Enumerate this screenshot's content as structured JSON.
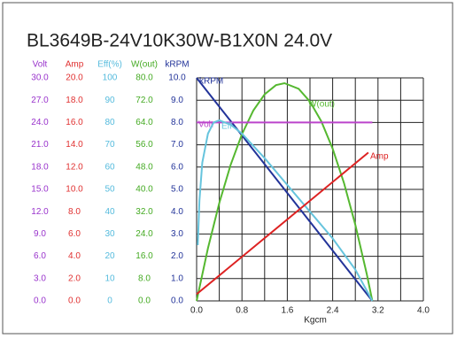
{
  "chart_data": {
    "type": "line",
    "title": "BL3649B-24V10K30W-B1X0N   24.0V",
    "x_label": "Kgcm",
    "xlim": [
      0,
      4.0
    ],
    "xticks": [
      {
        "value": 0,
        "label": "0.0"
      },
      {
        "value": 0.8,
        "label": "0.8"
      },
      {
        "value": 1.6,
        "label": "1.6"
      },
      {
        "value": 2.4,
        "label": "2.4"
      },
      {
        "value": 3.2,
        "label": "3.2"
      },
      {
        "value": 4.0,
        "label": "4.0"
      }
    ],
    "x_minor_grid": [
      0.4,
      1.2,
      2.0,
      2.8,
      3.6
    ],
    "grid": true,
    "axes": [
      {
        "name": "Volt",
        "color": "#9933cc",
        "ylim": [
          0,
          30
        ],
        "yticks": [
          {
            "value": 0,
            "label": "0.0"
          },
          {
            "value": 3,
            "label": "3.0"
          },
          {
            "value": 6,
            "label": "6.0"
          },
          {
            "value": 9,
            "label": "9.0"
          },
          {
            "value": 12,
            "label": "12.0"
          },
          {
            "value": 15,
            "label": "15.0"
          },
          {
            "value": 18,
            "label": "18.0"
          },
          {
            "value": 21,
            "label": "21.0"
          },
          {
            "value": 24,
            "label": "24.0"
          },
          {
            "value": 27,
            "label": "27.0"
          },
          {
            "value": 30,
            "label": "30.0"
          }
        ]
      },
      {
        "name": "Amp",
        "color": "#e03030",
        "ylim": [
          0,
          20
        ],
        "yticks": [
          {
            "value": 0,
            "label": "0.0"
          },
          {
            "value": 2,
            "label": "2.0"
          },
          {
            "value": 4,
            "label": "4.0"
          },
          {
            "value": 6,
            "label": "6.0"
          },
          {
            "value": 8,
            "label": "8.0"
          },
          {
            "value": 10,
            "label": "10.0"
          },
          {
            "value": 12,
            "label": "12.0"
          },
          {
            "value": 14,
            "label": "14.0"
          },
          {
            "value": 16,
            "label": "16.0"
          },
          {
            "value": 18,
            "label": "18.0"
          },
          {
            "value": 20,
            "label": "20.0"
          }
        ]
      },
      {
        "name": "Eff(%)",
        "color": "#55bbdd",
        "ylim": [
          0,
          100
        ],
        "yticks": [
          0,
          10,
          20,
          30,
          40,
          50,
          60,
          70,
          80,
          90,
          100
        ]
      },
      {
        "name": "W(out)",
        "color": "#44aa22",
        "ylim": [
          0,
          80
        ],
        "yticks": [
          {
            "value": 0,
            "label": "0.0"
          },
          {
            "value": 8,
            "label": "8.0"
          },
          {
            "value": 16,
            "label": "16.0"
          },
          {
            "value": 24,
            "label": "24.0"
          },
          {
            "value": 32,
            "label": "32.0"
          },
          {
            "value": 40,
            "label": "40.0"
          },
          {
            "value": 48,
            "label": "48.0"
          },
          {
            "value": 56,
            "label": "56.0"
          },
          {
            "value": 64,
            "label": "64.0"
          },
          {
            "value": 72,
            "label": "72.0"
          },
          {
            "value": 80,
            "label": "80.0"
          }
        ]
      },
      {
        "name": "kRPM",
        "color": "#223399",
        "ylim": [
          0,
          10
        ],
        "yticks": [
          {
            "value": 0,
            "label": "0.0"
          },
          {
            "value": 1,
            "label": "1.0"
          },
          {
            "value": 2,
            "label": "2.0"
          },
          {
            "value": 3,
            "label": "3.0"
          },
          {
            "value": 4,
            "label": "4.0"
          },
          {
            "value": 5,
            "label": "5.0"
          },
          {
            "value": 6,
            "label": "6.0"
          },
          {
            "value": 7,
            "label": "7.0"
          },
          {
            "value": 8,
            "label": "8.0"
          },
          {
            "value": 9,
            "label": "9.0"
          },
          {
            "value": 10,
            "label": "10.0"
          }
        ]
      }
    ],
    "series": [
      {
        "name": "kRPM",
        "axis": 4,
        "color": "#223399",
        "x": [
          0,
          3.1
        ],
        "values": [
          10,
          0
        ]
      },
      {
        "name": "W(out)",
        "axis": 3,
        "color": "#55b830",
        "x": [
          0,
          0.2,
          0.4,
          0.6,
          0.8,
          1.0,
          1.2,
          1.4,
          1.55,
          1.8,
          2.0,
          2.2,
          2.4,
          2.6,
          2.8,
          3.0,
          3.1
        ],
        "values": [
          0,
          18.9,
          35.1,
          48.8,
          59.8,
          68.3,
          74.1,
          77.4,
          78.1,
          76.1,
          71.5,
          64.4,
          54.6,
          42.3,
          27.3,
          9.8,
          0
        ]
      },
      {
        "name": "Volt",
        "axis": 0,
        "color": "#bb44cc",
        "x": [
          0,
          3.1
        ],
        "values": [
          24,
          24
        ]
      },
      {
        "name": "Eff",
        "axis": 2,
        "color": "#66c4dd",
        "x": [
          0.02,
          0.05,
          0.1,
          0.2,
          0.3,
          0.4,
          0.6,
          0.8,
          1.2,
          1.6,
          2.0,
          2.4,
          2.8,
          3.1
        ],
        "values": [
          25,
          45,
          62,
          75,
          80,
          81,
          79,
          75,
          64,
          52,
          40,
          28,
          14,
          0
        ]
      },
      {
        "name": "Amp",
        "axis": 1,
        "color": "#dd2222",
        "x": [
          0,
          3.03
        ],
        "values": [
          0.6,
          13.3
        ]
      }
    ]
  }
}
